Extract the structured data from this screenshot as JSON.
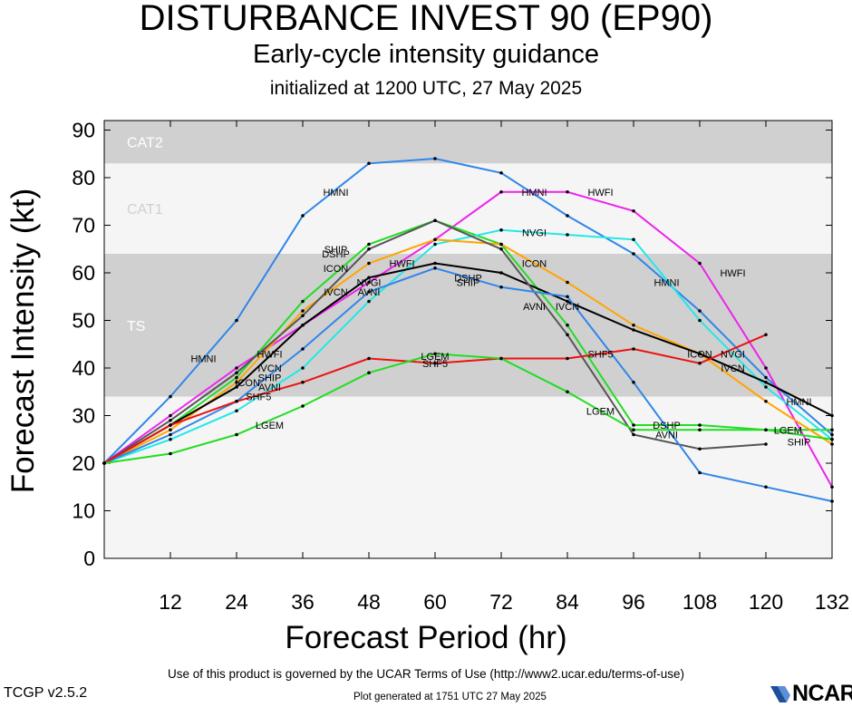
{
  "header": {
    "title": "DISTURBANCE INVEST 90 (EP90)",
    "subtitle": "Early-cycle intensity guidance",
    "init": "initialized at 1200 UTC, 27 May 2025"
  },
  "footer": {
    "terms": "Use of this product is governed by the UCAR Terms of Use (http://www2.ucar.edu/terms-of-use)",
    "generated": "Plot generated at 1751 UTC   27 May 2025",
    "version": "TCGP v2.5.2",
    "logo_text": "NCAR"
  },
  "chart_data": {
    "type": "line",
    "title": "DISTURBANCE INVEST 90 (EP90)",
    "xlabel": "Forecast Period (hr)",
    "ylabel": "Forecast Intensity (kt)",
    "xlim": [
      0,
      132
    ],
    "ylim": [
      0,
      92
    ],
    "xticks": [
      12,
      24,
      36,
      48,
      60,
      72,
      84,
      96,
      108,
      120,
      132
    ],
    "yticks": [
      0,
      10,
      20,
      30,
      40,
      50,
      60,
      70,
      80,
      90
    ],
    "bands": [
      {
        "label": "TS",
        "from": 34,
        "to": 64,
        "color": "#d0d0d0",
        "label_color": "#ffffff"
      },
      {
        "label": "CAT1",
        "from": 64,
        "to": 83,
        "color": "#f5f5f5",
        "label_color": "#d0d0d0"
      },
      {
        "label": "CAT2",
        "from": 83,
        "to": 92,
        "color": "#d0d0d0",
        "label_color": "#ffffff"
      }
    ],
    "below_band_color": "#f5f5f5",
    "series": [
      {
        "name": "HMNI",
        "color": "#2f86ea",
        "x": [
          0,
          12,
          24,
          36,
          48,
          60,
          72,
          84,
          96,
          108,
          120,
          132
        ],
        "y": [
          20,
          34,
          50,
          72,
          83,
          84,
          81,
          72,
          64,
          52,
          38,
          26
        ]
      },
      {
        "name": "HWFI",
        "color": "#ee22ee",
        "x": [
          0,
          12,
          24,
          36,
          48,
          60,
          72,
          84,
          96,
          108,
          120,
          132
        ],
        "y": [
          20,
          30,
          40,
          49,
          58,
          67,
          77,
          77,
          73,
          62,
          40,
          15
        ]
      },
      {
        "name": "DSHP",
        "color": "#22dd22",
        "x": [
          0,
          12,
          24,
          36,
          48,
          60,
          72,
          84,
          96,
          108,
          120,
          132
        ],
        "y": [
          20,
          28,
          38,
          54,
          66,
          71,
          66,
          49,
          28,
          28,
          27,
          27
        ]
      },
      {
        "name": "NVGI",
        "color": "#22e8e8",
        "x": [
          0,
          12,
          24,
          36,
          48,
          60,
          72,
          84,
          96,
          108,
          120,
          132
        ],
        "y": [
          20,
          25,
          31,
          40,
          54,
          66,
          69,
          68,
          67,
          50,
          36,
          25
        ]
      },
      {
        "name": "ICON",
        "color": "#ffa500",
        "x": [
          0,
          12,
          24,
          36,
          48,
          60,
          72,
          84,
          96,
          108,
          120,
          132
        ],
        "y": [
          20,
          27,
          37,
          52,
          62,
          67,
          66,
          58,
          49,
          43,
          33,
          24
        ]
      },
      {
        "name": "IVCN",
        "color": "#000000",
        "x": [
          0,
          12,
          24,
          36,
          48,
          60,
          72,
          84,
          96,
          108,
          120,
          132
        ],
        "y": [
          20,
          28,
          36,
          49,
          59,
          62,
          60,
          54,
          48,
          43,
          37,
          30
        ]
      },
      {
        "name": "SHIP",
        "color": "#555555",
        "x": [
          0,
          12,
          24,
          36,
          48,
          60,
          72,
          84,
          96,
          108,
          120
        ],
        "y": [
          20,
          29,
          39,
          51,
          65,
          71,
          65,
          47,
          26,
          23,
          24
        ]
      },
      {
        "name": "AVNI",
        "color": "#2f86ea",
        "x": [
          0,
          12,
          24,
          36,
          48,
          60,
          72,
          84,
          96,
          108,
          120,
          132
        ],
        "y": [
          20,
          26,
          33,
          44,
          56,
          61,
          57,
          55,
          37,
          18,
          15,
          12
        ]
      },
      {
        "name": "SHF5",
        "color": "#ee1111",
        "x": [
          0,
          12,
          24,
          36,
          48,
          60,
          72,
          84,
          96,
          108,
          120
        ],
        "y": [
          20,
          28,
          33,
          37,
          42,
          41,
          42,
          42,
          44,
          41,
          47
        ]
      },
      {
        "name": "LGEM",
        "color": "#22dd22",
        "x": [
          0,
          12,
          24,
          36,
          48,
          60,
          72,
          84,
          96,
          108,
          120,
          132
        ],
        "y": [
          20,
          22,
          26,
          32,
          39,
          43,
          42,
          35,
          27,
          27,
          27,
          25
        ]
      }
    ],
    "labels": [
      {
        "text": "HMNI",
        "series": "HMNI",
        "x": 18,
        "y": 42
      },
      {
        "text": "HMNI",
        "series": "HMNI",
        "x": 42,
        "y": 77
      },
      {
        "text": "HMNI",
        "series": "HMNI",
        "x": 78,
        "y": 77
      },
      {
        "text": "HMNI",
        "series": "HMNI",
        "x": 102,
        "y": 58
      },
      {
        "text": "HMNI",
        "series": "HMNI",
        "x": 126,
        "y": 33
      },
      {
        "text": "HWFI",
        "series": "HWFI",
        "x": 90,
        "y": 77
      },
      {
        "text": "HWFI",
        "series": "HWFI",
        "x": 114,
        "y": 60
      },
      {
        "text": "HWFI",
        "series": "HWFI",
        "x": 30,
        "y": 43
      },
      {
        "text": "HWFI",
        "series": "HWFI",
        "x": 54,
        "y": 62
      },
      {
        "text": "DSHP",
        "series": "DSHP",
        "x": 42,
        "y": 64
      },
      {
        "text": "DSHP",
        "series": "DSHP",
        "x": 66,
        "y": 59
      },
      {
        "text": "DSHP",
        "series": "DSHP",
        "x": 102,
        "y": 28
      },
      {
        "text": "NVGI",
        "series": "NVGI",
        "x": 78,
        "y": 68.5
      },
      {
        "text": "NVGI",
        "series": "NVGI",
        "x": 114,
        "y": 43
      },
      {
        "text": "NVGI",
        "series": "NVGI",
        "x": 48,
        "y": 58
      },
      {
        "text": "ICON",
        "series": "ICON",
        "x": 42,
        "y": 61
      },
      {
        "text": "ICON",
        "series": "ICON",
        "x": 78,
        "y": 62
      },
      {
        "text": "ICON",
        "series": "ICON",
        "x": 108,
        "y": 43
      },
      {
        "text": "ICON",
        "series": "ICON",
        "x": 26,
        "y": 37
      },
      {
        "text": "IVCN",
        "series": "IVCN",
        "x": 42,
        "y": 56
      },
      {
        "text": "IVCN",
        "series": "IVCN",
        "x": 84,
        "y": 53
      },
      {
        "text": "IVCN",
        "series": "IVCN",
        "x": 114,
        "y": 40
      },
      {
        "text": "IVCN",
        "series": "IVCN",
        "x": 30,
        "y": 40
      },
      {
        "text": "SHIP",
        "series": "SHIP",
        "x": 42,
        "y": 65
      },
      {
        "text": "SHIP",
        "series": "SHIP",
        "x": 66,
        "y": 58
      },
      {
        "text": "SHIP",
        "series": "SHIP",
        "x": 126,
        "y": 24.5
      },
      {
        "text": "SHIP",
        "series": "SHIP",
        "x": 30,
        "y": 38
      },
      {
        "text": "AVNI",
        "series": "AVNI",
        "x": 30,
        "y": 36
      },
      {
        "text": "AVNI",
        "series": "AVNI",
        "x": 78,
        "y": 53
      },
      {
        "text": "AVNI",
        "series": "AVNI",
        "x": 102,
        "y": 26
      },
      {
        "text": "AVNI",
        "series": "AVNI",
        "x": 48,
        "y": 56
      },
      {
        "text": "SHF5",
        "series": "SHF5",
        "x": 28,
        "y": 34
      },
      {
        "text": "SHF5",
        "series": "SHF5",
        "x": 60,
        "y": 41
      },
      {
        "text": "SHF5",
        "series": "SHF5",
        "x": 90,
        "y": 43
      },
      {
        "text": "LGEM",
        "series": "LGEM",
        "x": 30,
        "y": 28
      },
      {
        "text": "LGEM",
        "series": "LGEM",
        "x": 60,
        "y": 42.5
      },
      {
        "text": "LGEM",
        "series": "LGEM",
        "x": 90,
        "y": 31
      },
      {
        "text": "LGEM",
        "series": "LGEM",
        "x": 124,
        "y": 27
      }
    ]
  }
}
